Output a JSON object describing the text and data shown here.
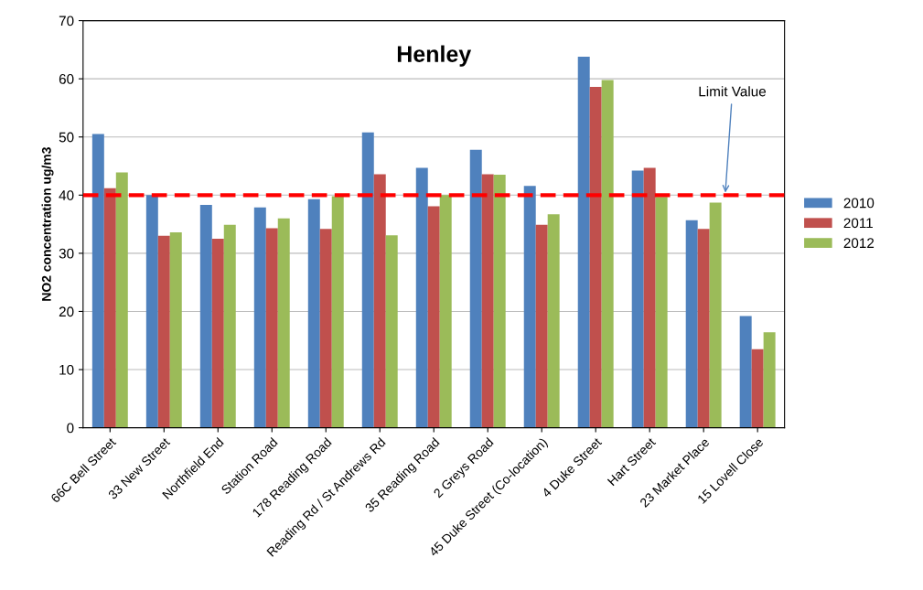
{
  "chart_data": {
    "type": "bar",
    "title": "Henley",
    "ylabel": "NO2 concentration ug/m3",
    "categories": [
      "66C Bell Street",
      "33 New Street",
      "Northfield End",
      "Station Road",
      "178 Reading Road",
      "Reading Rd / St Andrews Rd",
      "35 Reading Road",
      "2 Greys Road",
      "45 Duke Street (Co-location)",
      "4 Duke Street",
      "Hart Street",
      "23 Market Place",
      "15 Lovell Close"
    ],
    "series": [
      {
        "name": "2010",
        "color": "#4f81bd",
        "values": [
          50.5,
          40.0,
          38.3,
          37.9,
          39.3,
          50.8,
          44.7,
          47.8,
          41.6,
          63.8,
          44.2,
          35.7,
          19.2
        ]
      },
      {
        "name": "2011",
        "color": "#c0504d",
        "values": [
          41.2,
          33.0,
          32.5,
          34.3,
          34.2,
          43.6,
          38.1,
          43.6,
          34.9,
          58.6,
          44.7,
          34.2,
          13.5
        ]
      },
      {
        "name": "2012",
        "color": "#9bbb59",
        "values": [
          43.9,
          33.6,
          34.9,
          36.0,
          39.8,
          33.1,
          40.0,
          43.5,
          36.7,
          59.8,
          39.7,
          38.7,
          16.4
        ]
      }
    ],
    "ylim": [
      0,
      70
    ],
    "yticks": [
      0,
      10,
      20,
      30,
      40,
      50,
      60,
      70
    ],
    "ref_lines": [
      {
        "axis": "y",
        "value": 40,
        "label": "Limit Value",
        "color": "#ff0000",
        "line_style": "dashed"
      }
    ],
    "grid": "y",
    "legend": "right"
  }
}
